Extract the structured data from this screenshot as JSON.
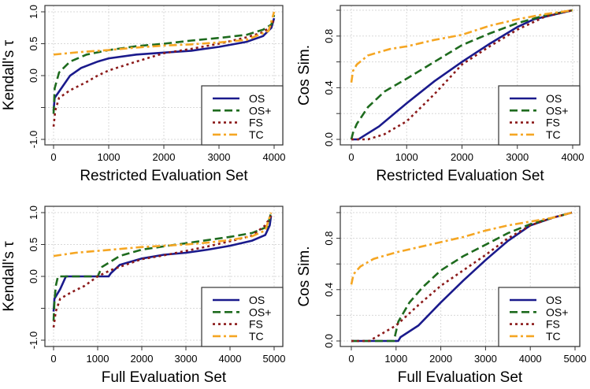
{
  "series_styles": [
    {
      "name": "OS",
      "color": "#1a1a8c",
      "dash": "solid"
    },
    {
      "name": "OS+",
      "color": "#1e6b1e",
      "dash": "dashed"
    },
    {
      "name": "FS",
      "color": "#8b1a1a",
      "dash": "dotted"
    },
    {
      "name": "TC",
      "color": "#f5a623",
      "dash": "dotdash"
    }
  ],
  "chart_data": [
    {
      "type": "line",
      "xlabel": "Restricted Evaluation Set",
      "ylabel": "Kendall's τ",
      "xlim": [
        0,
        4000
      ],
      "ylim": [
        -1.0,
        1.0
      ],
      "xticks": [
        "0",
        "1000",
        "2000",
        "3000",
        "4000"
      ],
      "xtick_values": [
        0,
        1000,
        2000,
        3000,
        4000
      ],
      "yticks": [
        "1.0",
        "0.5",
        "0.0",
        "",
        "-1.0"
      ],
      "ytick_values": [
        1.0,
        0.5,
        0.0,
        -0.5,
        -1.0
      ],
      "grid": true,
      "legend": "bottom-right",
      "series": [
        {
          "name": "OS",
          "x": [
            0,
            20,
            100,
            300,
            500,
            800,
            1000,
            1500,
            2000,
            2500,
            3000,
            3500,
            3800,
            3950,
            4000
          ],
          "y": [
            -0.55,
            -0.35,
            -0.25,
            0,
            0.12,
            0.22,
            0.27,
            0.33,
            0.36,
            0.39,
            0.45,
            0.53,
            0.62,
            0.75,
            0.9
          ]
        },
        {
          "name": "OS+",
          "x": [
            0,
            20,
            100,
            300,
            600,
            1000,
            1500,
            2000,
            2500,
            3000,
            3500,
            3800,
            3950,
            4000
          ],
          "y": [
            -0.6,
            -0.2,
            0.05,
            0.22,
            0.33,
            0.4,
            0.46,
            0.5,
            0.55,
            0.59,
            0.64,
            0.72,
            0.8,
            0.95
          ]
        },
        {
          "name": "FS",
          "x": [
            0,
            30,
            100,
            300,
            600,
            800,
            1000,
            1500,
            2000,
            2500,
            3000,
            3500,
            3800,
            3950,
            4000
          ],
          "y": [
            -0.8,
            -0.55,
            -0.35,
            -0.23,
            -0.1,
            0,
            0.08,
            0.22,
            0.35,
            0.42,
            0.5,
            0.6,
            0.68,
            0.78,
            0.9
          ]
        },
        {
          "name": "TC",
          "x": [
            0,
            500,
            1000,
            1500,
            2000,
            2500,
            3000,
            3500,
            3900,
            4000
          ],
          "y": [
            0.33,
            0.37,
            0.4,
            0.44,
            0.47,
            0.49,
            0.52,
            0.56,
            0.7,
            1.0
          ]
        }
      ]
    },
    {
      "type": "line",
      "xlabel": "Restricted Evaluation Set",
      "ylabel": "Cos Sim.",
      "xlim": [
        0,
        4000
      ],
      "ylim": [
        0.0,
        1.0
      ],
      "xticks": [
        "0",
        "1000",
        "2000",
        "3000",
        "4000"
      ],
      "xtick_values": [
        0,
        1000,
        2000,
        3000,
        4000
      ],
      "yticks": [
        "0.0",
        "",
        "0.4",
        "",
        "0.8",
        ""
      ],
      "ytick_values": [
        0.0,
        0.2,
        0.4,
        0.6,
        0.8,
        1.0
      ],
      "grid": true,
      "legend": "bottom-right",
      "series": [
        {
          "name": "OS",
          "x": [
            0,
            130,
            200,
            500,
            1000,
            1500,
            2000,
            2500,
            3000,
            3300,
            4000
          ],
          "y": [
            0,
            0,
            0.02,
            0.1,
            0.28,
            0.45,
            0.6,
            0.74,
            0.87,
            0.93,
            1.0
          ]
        },
        {
          "name": "OS+",
          "x": [
            0,
            30,
            100,
            300,
            600,
            1000,
            1500,
            2000,
            2500,
            3000,
            3500,
            4000
          ],
          "y": [
            0,
            0.05,
            0.12,
            0.25,
            0.37,
            0.47,
            0.6,
            0.73,
            0.82,
            0.9,
            0.96,
            1.0
          ]
        },
        {
          "name": "FS",
          "x": [
            0,
            300,
            600,
            1000,
            1500,
            2000,
            2500,
            3000,
            3500,
            4000
          ],
          "y": [
            0,
            0,
            0.04,
            0.14,
            0.35,
            0.58,
            0.72,
            0.85,
            0.95,
            1.0
          ]
        },
        {
          "name": "TC",
          "x": [
            0,
            30,
            100,
            300,
            700,
            1000,
            1500,
            2000,
            2500,
            3000,
            3500,
            4000
          ],
          "y": [
            0.44,
            0.53,
            0.58,
            0.65,
            0.7,
            0.72,
            0.77,
            0.81,
            0.88,
            0.93,
            0.97,
            1.0
          ]
        }
      ]
    },
    {
      "type": "line",
      "xlabel": "Full Evaluation Set",
      "ylabel": "Kendall's τ",
      "xlim": [
        0,
        5000
      ],
      "ylim": [
        -1.0,
        1.0
      ],
      "xticks": [
        "0",
        "1000",
        "2000",
        "3000",
        "4000",
        "5000"
      ],
      "xtick_values": [
        0,
        1000,
        2000,
        3000,
        4000,
        5000
      ],
      "yticks": [
        "1.0",
        "0.5",
        "0.0",
        "",
        "-1.0"
      ],
      "ytick_values": [
        1.0,
        0.5,
        0.0,
        -0.5,
        -1.0
      ],
      "grid": true,
      "legend": "bottom-right",
      "series": [
        {
          "name": "OS",
          "x": [
            0,
            20,
            150,
            280,
            1250,
            1300,
            1500,
            2000,
            2500,
            3000,
            3500,
            4000,
            4500,
            4800,
            4900,
            4930
          ],
          "y": [
            -0.55,
            -0.35,
            -0.2,
            0,
            0,
            0.05,
            0.18,
            0.28,
            0.34,
            0.37,
            0.42,
            0.48,
            0.56,
            0.65,
            0.8,
            0.95
          ]
        },
        {
          "name": "OS+",
          "x": [
            0,
            20,
            50,
            100,
            1000,
            1100,
            1500,
            2000,
            2500,
            3000,
            3500,
            4000,
            4500,
            4850,
            4930
          ],
          "y": [
            -0.7,
            -0.4,
            -0.15,
            0,
            0,
            0.15,
            0.32,
            0.42,
            0.47,
            0.52,
            0.57,
            0.62,
            0.68,
            0.78,
            1.0
          ]
        },
        {
          "name": "FS",
          "x": [
            0,
            50,
            150,
            400,
            700,
            1000,
            1300,
            1500,
            2000,
            2500,
            3000,
            3500,
            4000,
            4500,
            4800,
            4930
          ],
          "y": [
            -0.8,
            -0.55,
            -0.35,
            -0.25,
            -0.15,
            0,
            0.1,
            0.15,
            0.27,
            0.33,
            0.4,
            0.47,
            0.55,
            0.64,
            0.8,
            0.95
          ]
        },
        {
          "name": "TC",
          "x": [
            0,
            500,
            1000,
            1500,
            2000,
            2500,
            3000,
            3500,
            4000,
            4500,
            4800,
            4930
          ],
          "y": [
            0.32,
            0.37,
            0.4,
            0.43,
            0.46,
            0.48,
            0.5,
            0.53,
            0.57,
            0.63,
            0.72,
            1.0
          ]
        }
      ]
    },
    {
      "type": "line",
      "xlabel": "Full Evaluation Set",
      "ylabel": "Cos Sim.",
      "xlim": [
        0,
        5000
      ],
      "ylim": [
        0.0,
        1.0
      ],
      "xticks": [
        "0",
        "1000",
        "2000",
        "3000",
        "4000",
        "5000"
      ],
      "xtick_values": [
        0,
        1000,
        2000,
        3000,
        4000,
        5000
      ],
      "yticks": [
        "0.0",
        "",
        "0.4",
        "",
        "0.8",
        ""
      ],
      "ytick_values": [
        0.0,
        0.2,
        0.4,
        0.6,
        0.8,
        1.0
      ],
      "grid": true,
      "legend": "bottom-right",
      "series": [
        {
          "name": "OS",
          "x": [
            0,
            1050,
            1100,
            1500,
            2000,
            2500,
            3000,
            3500,
            4000,
            4500,
            4930
          ],
          "y": [
            0,
            0,
            0.03,
            0.12,
            0.3,
            0.47,
            0.63,
            0.78,
            0.9,
            0.96,
            1.0
          ]
        },
        {
          "name": "OS+",
          "x": [
            0,
            950,
            1050,
            1300,
            1600,
            2000,
            2500,
            3000,
            3500,
            4000,
            4500,
            4930
          ],
          "y": [
            0,
            0,
            0.15,
            0.3,
            0.42,
            0.55,
            0.66,
            0.75,
            0.84,
            0.91,
            0.96,
            1.0
          ]
        },
        {
          "name": "FS",
          "x": [
            0,
            400,
            700,
            1000,
            1500,
            2000,
            2500,
            3000,
            3500,
            4000,
            4500,
            4930
          ],
          "y": [
            0,
            0,
            0.06,
            0.12,
            0.28,
            0.43,
            0.55,
            0.67,
            0.8,
            0.9,
            0.96,
            1.0
          ]
        },
        {
          "name": "TC",
          "x": [
            0,
            50,
            200,
            500,
            1000,
            1500,
            2000,
            2500,
            3000,
            3500,
            4000,
            4500,
            4930
          ],
          "y": [
            0.44,
            0.52,
            0.58,
            0.64,
            0.69,
            0.73,
            0.77,
            0.81,
            0.86,
            0.9,
            0.93,
            0.96,
            1.0
          ]
        }
      ]
    }
  ]
}
